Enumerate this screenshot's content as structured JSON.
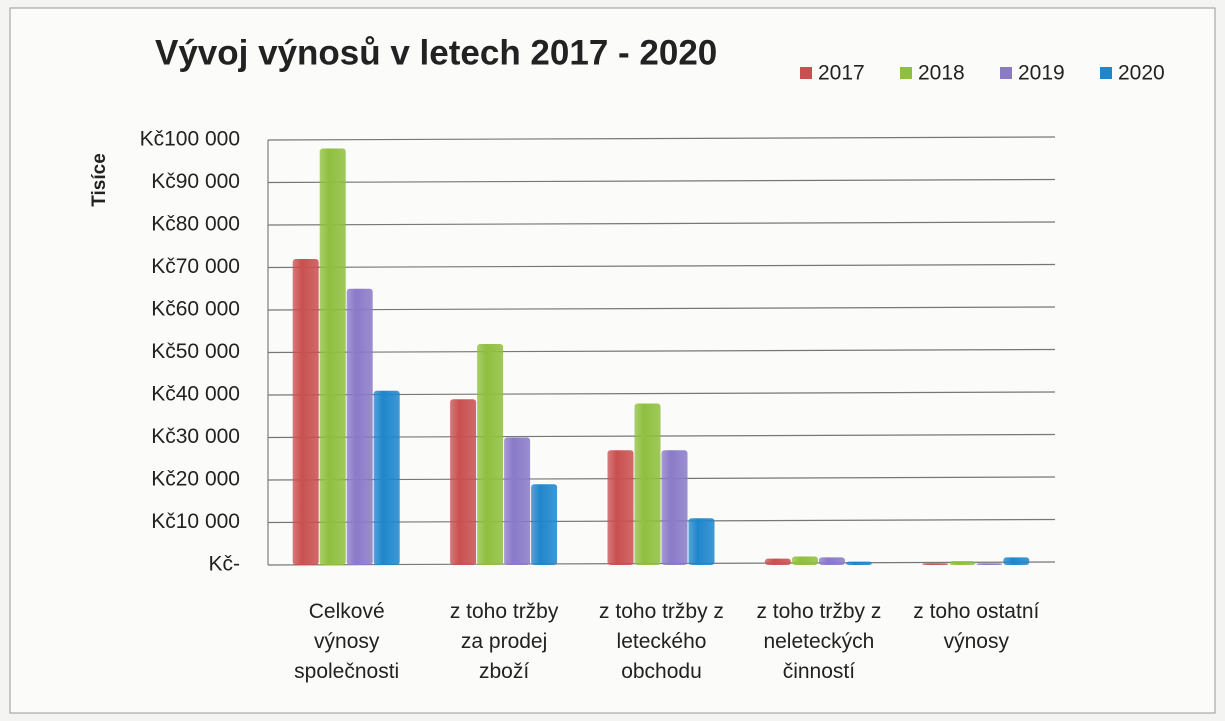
{
  "chart_data": {
    "type": "bar",
    "title": "Vývoj výnosů v letech 2017 - 2020",
    "y_axis_label": "Tisíce",
    "categories": [
      "Celkové\nvýnosy\nspolečnosti",
      "z toho tržby\nza prodej\nzboží",
      "z toho tržby z\nleteckého\nobchodu",
      "z toho tržby z\nneleteckých\nčinností",
      "z toho ostatní\nvýnosy"
    ],
    "series": [
      {
        "name": "2017",
        "color": "#c9504f",
        "values": [
          72000,
          39000,
          27000,
          1500,
          400
        ]
      },
      {
        "name": "2018",
        "color": "#8fbf3f",
        "values": [
          98000,
          52000,
          38000,
          2000,
          900
        ]
      },
      {
        "name": "2019",
        "color": "#8a7ac8",
        "values": [
          65000,
          30000,
          27000,
          1800,
          400
        ]
      },
      {
        "name": "2020",
        "color": "#1f86cc",
        "values": [
          41000,
          19000,
          11000,
          800,
          1800
        ]
      }
    ],
    "ylim": [
      0,
      100000
    ],
    "yticks": [
      {
        "value": 0,
        "label": "Kč-"
      },
      {
        "value": 10000,
        "label": "Kč10 000"
      },
      {
        "value": 20000,
        "label": "Kč20 000"
      },
      {
        "value": 30000,
        "label": "Kč30 000"
      },
      {
        "value": 40000,
        "label": "Kč40 000"
      },
      {
        "value": 50000,
        "label": "Kč50 000"
      },
      {
        "value": 60000,
        "label": "Kč60 000"
      },
      {
        "value": 70000,
        "label": "Kč70 000"
      },
      {
        "value": 80000,
        "label": "Kč80 000"
      },
      {
        "value": 90000,
        "label": "Kč90 000"
      },
      {
        "value": 100000,
        "label": "Kč100 000"
      }
    ],
    "grid": true,
    "legend": "top-right"
  }
}
